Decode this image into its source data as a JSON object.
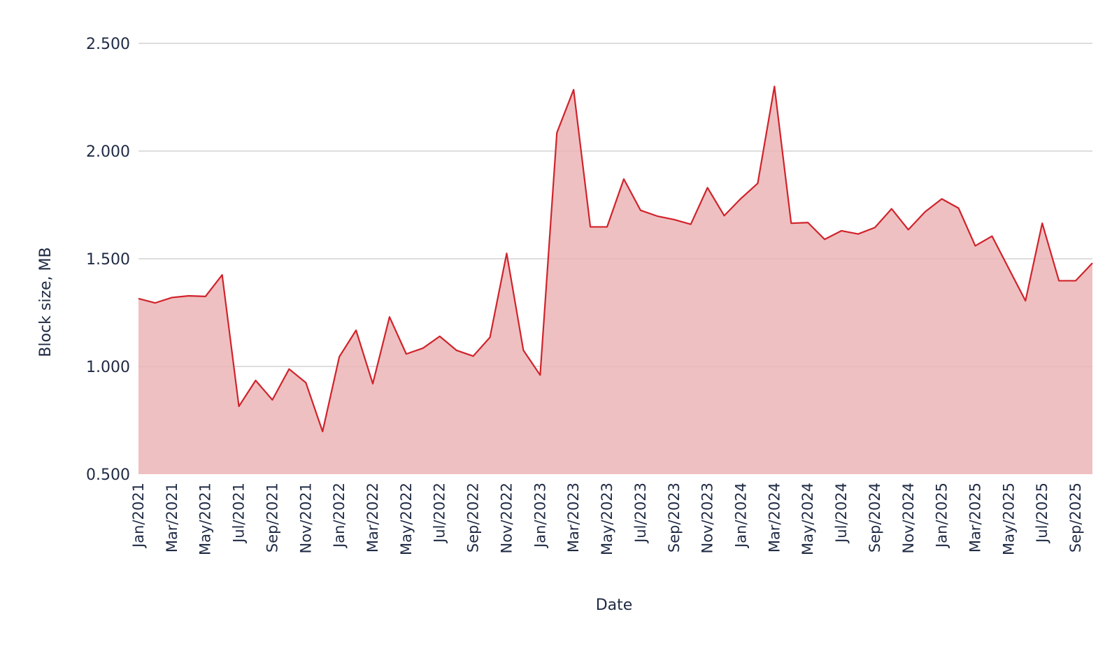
{
  "chart_data": {
    "type": "area",
    "title": "",
    "xlabel": "Date",
    "ylabel": "Block size, MB",
    "ylim": [
      0.5,
      2.5
    ],
    "yticks": [
      "0.500",
      "1.000",
      "1.500",
      "2.000",
      "2.500"
    ],
    "ytick_values": [
      0.5,
      1.0,
      1.5,
      2.0,
      2.5
    ],
    "grid": "horizontal",
    "x_tick_labels": [
      "Jan/2021",
      "Mar/2021",
      "May/2021",
      "Jul/2021",
      "Sep/2021",
      "Nov/2021",
      "Jan/2022",
      "Mar/2022",
      "May/2022",
      "Jul/2022",
      "Sep/2022",
      "Nov/2022",
      "Jan/2023",
      "Mar/2023",
      "May/2023",
      "Jul/2023",
      "Sep/2023",
      "Nov/2023",
      "Jan/2024",
      "Mar/2024",
      "May/2024",
      "Jul/2024",
      "Sep/2024",
      "Nov/2024",
      "Jan/2025",
      "Mar/2025",
      "May/2025",
      "Jul/2025",
      "Sep/2025"
    ],
    "x": [
      "Jan/2021",
      "Feb/2021",
      "Mar/2021",
      "Apr/2021",
      "May/2021",
      "Jun/2021",
      "Jul/2021",
      "Aug/2021",
      "Sep/2021",
      "Oct/2021",
      "Nov/2021",
      "Dec/2021",
      "Jan/2022",
      "Feb/2022",
      "Mar/2022",
      "Apr/2022",
      "May/2022",
      "Jun/2022",
      "Jul/2022",
      "Aug/2022",
      "Sep/2022",
      "Oct/2022",
      "Nov/2022",
      "Dec/2022",
      "Jan/2023",
      "Feb/2023",
      "Mar/2023",
      "Apr/2023",
      "May/2023",
      "Jun/2023",
      "Jul/2023",
      "Aug/2023",
      "Sep/2023",
      "Oct/2023",
      "Nov/2023",
      "Dec/2023",
      "Jan/2024",
      "Feb/2024",
      "Mar/2024",
      "Apr/2024",
      "May/2024",
      "Jun/2024",
      "Jul/2024",
      "Aug/2024",
      "Sep/2024",
      "Oct/2024",
      "Nov/2024",
      "Dec/2024",
      "Jan/2025",
      "Feb/2025",
      "Mar/2025",
      "Apr/2025",
      "May/2025",
      "Jun/2025",
      "Jul/2025",
      "Aug/2025",
      "Sep/2025",
      "Oct/2025"
    ],
    "series": [
      {
        "values": [
          1.315,
          1.295,
          1.32,
          1.328,
          1.325,
          1.425,
          0.815,
          0.935,
          0.845,
          0.988,
          0.925,
          0.698,
          1.045,
          1.168,
          0.92,
          1.23,
          1.058,
          1.085,
          1.14,
          1.075,
          1.048,
          1.135,
          1.525,
          1.075,
          0.96,
          2.085,
          2.285,
          1.648,
          1.648,
          1.87,
          1.725,
          1.698,
          1.682,
          1.66,
          1.83,
          1.7,
          1.78,
          1.85,
          2.3,
          1.665,
          1.668,
          1.59,
          1.63,
          1.615,
          1.645,
          1.732,
          1.635,
          1.718,
          1.778,
          1.735,
          1.56,
          1.605,
          1.455,
          1.305,
          1.665,
          1.398,
          1.398,
          1.48
        ]
      }
    ],
    "colors": {
      "line": "#d0232b",
      "fill": "#efc0c1",
      "grid": "#d4d4d4",
      "text": "#1f2a44"
    }
  }
}
